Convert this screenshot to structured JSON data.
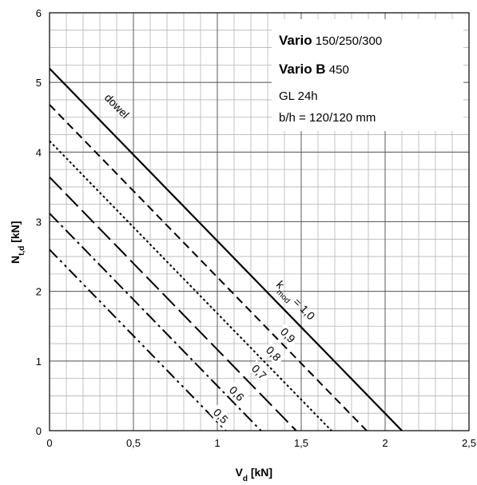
{
  "chart_data": {
    "type": "line",
    "xlabel": {
      "main": "V",
      "sub": "d",
      "unit": " [kN]"
    },
    "ylabel": {
      "main": "N",
      "sub": "t,d",
      "unit": " [kN]"
    },
    "xlim": [
      0,
      2.5
    ],
    "ylim": [
      0,
      6
    ],
    "xticks": [
      "0",
      "0,5",
      "1",
      "1,5",
      "2",
      "2,5"
    ],
    "xtick_values": [
      0,
      0.5,
      1,
      1.5,
      2,
      2.5
    ],
    "yticks": [
      "0",
      "1",
      "2",
      "3",
      "4",
      "5",
      "6"
    ],
    "ytick_values": [
      0,
      1,
      2,
      3,
      4,
      5,
      6
    ],
    "grid": {
      "major": true,
      "minor": true,
      "x_minor_step": 0.1,
      "y_minor_step": 0.25
    },
    "legend_box": {
      "position": "top-right",
      "lines": [
        {
          "bold": "Vario",
          "rest": " 150/250/300"
        },
        {
          "bold": "Vario B",
          "rest": " 450"
        },
        {
          "bold": "",
          "rest": "GL 24h"
        },
        {
          "bold": "",
          "rest": "b/h = 120/120 mm"
        }
      ]
    },
    "series": [
      {
        "x": [
          0,
          2.1
        ],
        "y": [
          5.2,
          0
        ],
        "dash": "solid",
        "label": "dowel"
      },
      {
        "x": [
          0,
          1.89
        ],
        "y": [
          4.68,
          0
        ],
        "dash": "dash-medium",
        "label": "0,9"
      },
      {
        "x": [
          0,
          1.68
        ],
        "y": [
          4.16,
          0
        ],
        "dash": "dash-short",
        "label": "0,8"
      },
      {
        "x": [
          0,
          1.47
        ],
        "y": [
          3.64,
          0
        ],
        "dash": "dash-long",
        "label": "0,7"
      },
      {
        "x": [
          0,
          1.26
        ],
        "y": [
          3.12,
          0
        ],
        "dash": "dash-dot",
        "label": "0,6"
      },
      {
        "x": [
          0,
          1.05
        ],
        "y": [
          2.6,
          0
        ],
        "dash": "dash-dot-dot",
        "label": "0,5"
      }
    ],
    "kmod_label": {
      "main": "k",
      "sub": "mod",
      "rest": " = 1,0"
    }
  }
}
